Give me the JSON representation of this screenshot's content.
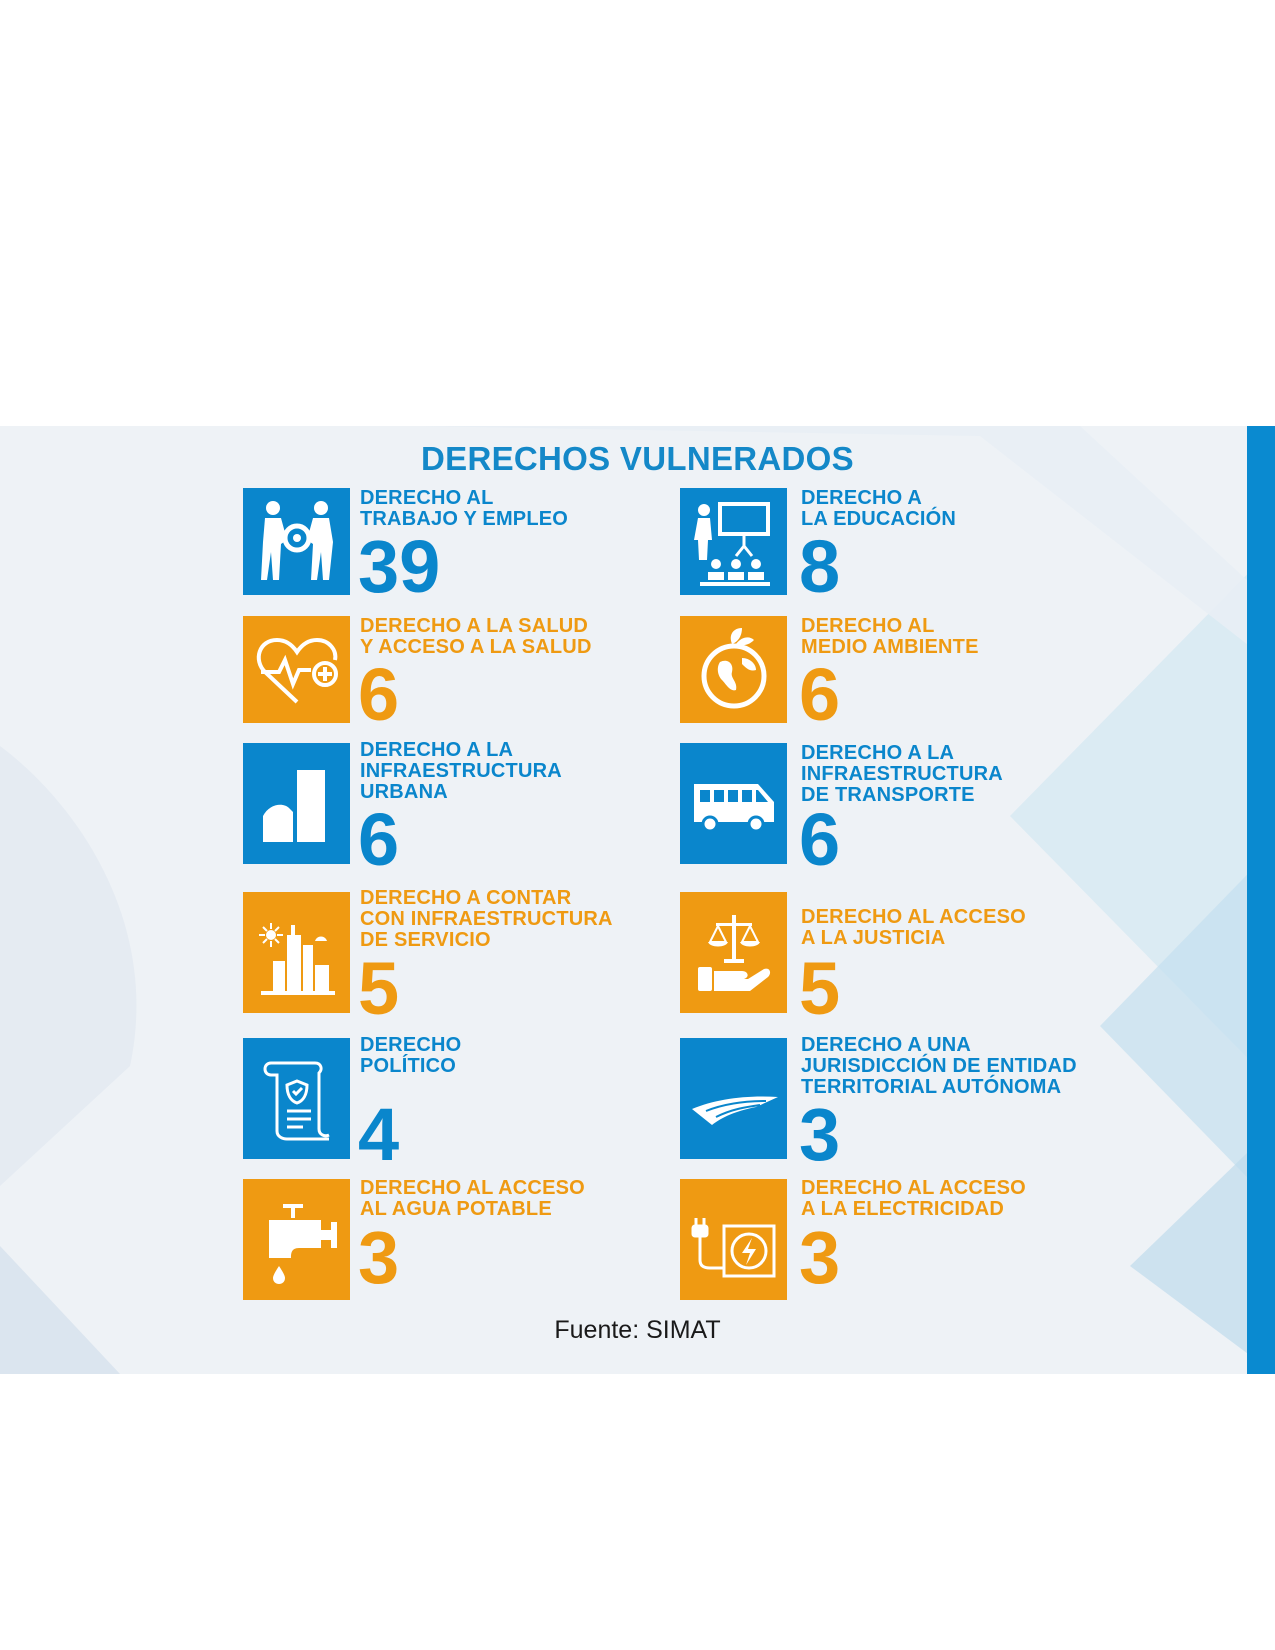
{
  "title": "DERECHOS VULNERADOS",
  "source": "Fuente: SIMAT",
  "colors": {
    "blue": "#0a86cc",
    "orange": "#ef9a12",
    "accent": "#0a8ad0"
  },
  "items": [
    {
      "label": "DERECHO AL\nTRABAJO Y EMPLEO",
      "value": "39",
      "color": "blue",
      "icon": "workers-gear-icon"
    },
    {
      "label": "DERECHO A\nLA EDUCACIÓN",
      "value": "8",
      "color": "blue",
      "icon": "classroom-presentation-icon"
    },
    {
      "label": "DERECHO A LA SALUD\n Y ACCESO A LA SALUD",
      "value": "6",
      "color": "orange",
      "icon": "heart-pulse-icon"
    },
    {
      "label": "DERECHO AL\nMEDIO AMBIENTE",
      "value": "6",
      "color": "orange",
      "icon": "earth-leaves-icon"
    },
    {
      "label": "DERECHO A LA\nINFRAESTRUCTURA\nURBANA",
      "value": "6",
      "color": "blue",
      "icon": "urban-buildings-icon"
    },
    {
      "label": "DERECHO A LA\nINFRAESTRUCTURA\nDE TRANSPORTE",
      "value": "6",
      "color": "blue",
      "icon": "bus-icon"
    },
    {
      "label": "DERECHO A CONTAR\nCON INFRAESTRUCTURA\nDE SERVICIO",
      "value": "5",
      "color": "orange",
      "icon": "city-services-icon"
    },
    {
      "label": "DERECHO AL ACCESO\nA LA JUSTICIA",
      "value": "5",
      "color": "orange",
      "icon": "justice-scale-hand-icon"
    },
    {
      "label": "DERECHO\nPOLÍTICO",
      "value": "4",
      "color": "blue",
      "icon": "document-shield-icon"
    },
    {
      "label": "DERECHO A UNA\nJURISDICCIÓN DE ENTIDAD\nTERRITORIAL AUTÓNOMA",
      "value": "3",
      "color": "blue",
      "icon": "territory-land-icon"
    },
    {
      "label": "DERECHO AL ACCESO\nAL AGUA POTABLE",
      "value": "3",
      "color": "orange",
      "icon": "water-tap-icon"
    },
    {
      "label": "DERECHO AL ACCESO\nA LA ELECTRICIDAD",
      "value": "3",
      "color": "orange",
      "icon": "electric-plug-icon"
    }
  ]
}
